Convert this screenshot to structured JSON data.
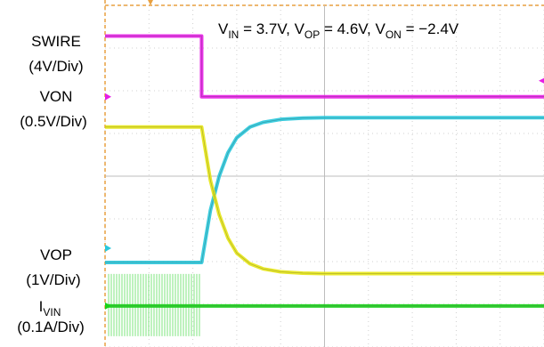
{
  "chart_data": {
    "type": "line",
    "title": "",
    "annotation": {
      "v_in_sym": "V",
      "v_in_sub": "IN",
      "v_in_val": " = 3.7V, ",
      "v_op_sym": "V",
      "v_op_sub": "OP",
      "v_op_val": " = 4.6V, ",
      "v_on_sym": "V",
      "v_on_sub": "ON",
      "v_on_val": " = −2.4V"
    },
    "channels": [
      {
        "id": "swire",
        "label": "SWIRE",
        "scale": "(4V/Div)",
        "color": "#e61ee6"
      },
      {
        "id": "von",
        "label": "VON",
        "scale": "(0.5V/Div)",
        "color": "#28c8dc"
      },
      {
        "id": "vop",
        "label": "VOP",
        "scale": "(1V/Div)",
        "color": "#e6e614"
      },
      {
        "id": "ivin",
        "label_sym": "I",
        "label_sub": "VIN",
        "scale": "(0.1A/Div)",
        "color": "#19d219"
      }
    ],
    "grid": {
      "divisions_x": 10,
      "divisions_y": 8,
      "major_color": "#e8a040"
    },
    "x_range": [
      0,
      10
    ],
    "y_range": [
      0,
      8
    ],
    "series": [
      {
        "name": "SWIRE",
        "color": "#e61ee6",
        "x": [
          0,
          2.2,
          2.2,
          10
        ],
        "y": [
          7.28,
          7.28,
          5.86,
          5.86
        ]
      },
      {
        "name": "VON",
        "color": "#28c8dc",
        "x": [
          0,
          2.2,
          2.4,
          2.6,
          2.8,
          3.0,
          3.3,
          3.6,
          4.0,
          4.5,
          5.0,
          10
        ],
        "y": [
          1.98,
          1.98,
          3.2,
          4.0,
          4.55,
          4.9,
          5.15,
          5.26,
          5.33,
          5.36,
          5.37,
          5.37
        ]
      },
      {
        "name": "VOP",
        "color": "#e6e614",
        "x": [
          0,
          2.2,
          2.4,
          2.6,
          2.8,
          3.0,
          3.3,
          3.6,
          4.0,
          4.5,
          5.0,
          10
        ],
        "y": [
          5.15,
          5.15,
          3.9,
          3.1,
          2.55,
          2.2,
          1.95,
          1.83,
          1.76,
          1.73,
          1.72,
          1.72
        ]
      },
      {
        "name": "IVIN",
        "color": "#19d219",
        "x": [
          0,
          10
        ],
        "y": [
          0.96,
          0.96
        ]
      }
    ]
  }
}
